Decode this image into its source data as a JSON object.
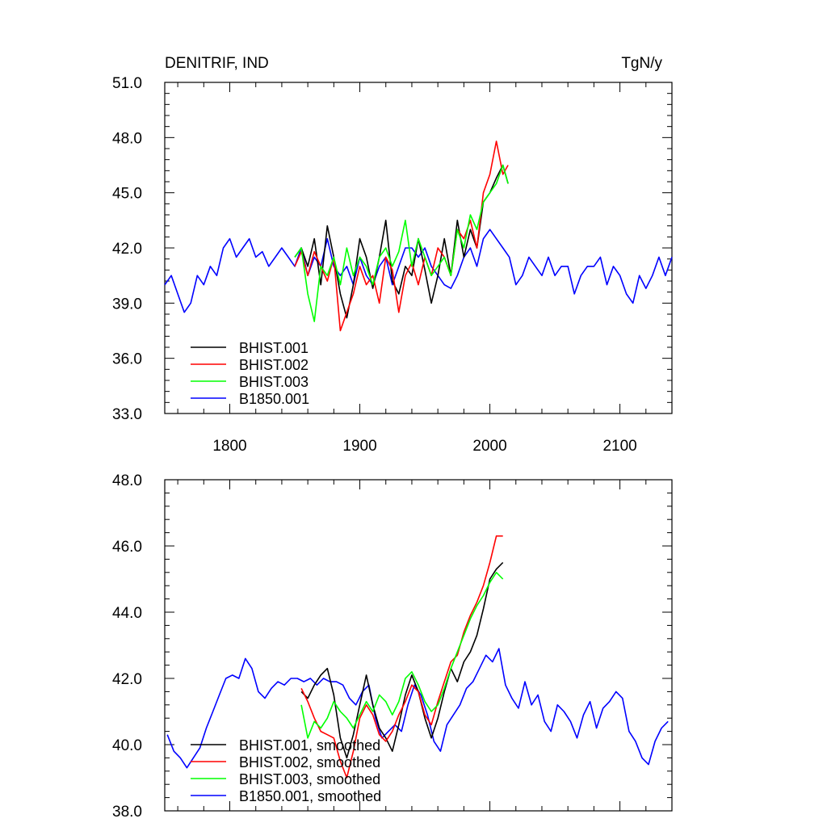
{
  "figure": {
    "title": "DENITRIF, IND",
    "units": "TgN/y"
  },
  "chart_data": [
    {
      "type": "line",
      "panel": "raw",
      "title": "DENITRIF, IND",
      "units": "TgN/y",
      "xlim": [
        1750,
        2140
      ],
      "ylim": [
        33.0,
        51.0
      ],
      "x_ticks": [
        1800,
        1900,
        2000,
        2100
      ],
      "x_tick_labels": [
        "1800",
        "1900",
        "2000",
        "2100"
      ],
      "y_ticks": [
        33.0,
        36.0,
        39.0,
        42.0,
        45.0,
        48.0,
        51.0
      ],
      "y_tick_labels": [
        "33.0",
        "36.0",
        "39.0",
        "42.0",
        "45.0",
        "48.0",
        "51.0"
      ],
      "grid": false,
      "legend_position": "bottom-left",
      "series": [
        {
          "name": "BHIST.001",
          "color": "#000000",
          "x": [
            1850,
            1855,
            1860,
            1865,
            1870,
            1875,
            1880,
            1885,
            1890,
            1895,
            1900,
            1905,
            1910,
            1915,
            1920,
            1925,
            1930,
            1935,
            1940,
            1945,
            1950,
            1955,
            1960,
            1965,
            1970,
            1975,
            1980,
            1985,
            1990,
            1995,
            2000,
            2005,
            2010,
            2014
          ],
          "y": [
            41.5,
            42.0,
            41.0,
            42.5,
            40.0,
            43.2,
            41.5,
            39.5,
            38.2,
            40.0,
            42.5,
            41.5,
            39.8,
            41.5,
            43.5,
            40.2,
            39.5,
            41.0,
            40.5,
            42.5,
            40.8,
            39.0,
            40.5,
            42.5,
            40.5,
            43.5,
            41.5,
            43.0,
            42.0,
            44.5,
            45.0,
            45.8,
            46.5,
            45.5
          ]
        },
        {
          "name": "BHIST.002",
          "color": "#ff0000",
          "x": [
            1850,
            1855,
            1860,
            1865,
            1870,
            1875,
            1880,
            1885,
            1890,
            1895,
            1900,
            1905,
            1910,
            1915,
            1920,
            1925,
            1930,
            1935,
            1940,
            1945,
            1950,
            1955,
            1960,
            1965,
            1970,
            1975,
            1980,
            1985,
            1990,
            1995,
            2000,
            2005,
            2010,
            2014
          ],
          "y": [
            41.0,
            41.8,
            40.5,
            41.8,
            41.0,
            40.2,
            41.5,
            37.5,
            38.5,
            39.5,
            41.0,
            40.0,
            40.5,
            39.0,
            41.5,
            40.8,
            38.5,
            40.5,
            41.2,
            40.0,
            41.5,
            40.5,
            42.0,
            41.5,
            40.5,
            43.0,
            42.5,
            43.5,
            42.0,
            45.0,
            46.0,
            47.8,
            46.0,
            46.5
          ]
        },
        {
          "name": "BHIST.003",
          "color": "#00ff00",
          "x": [
            1850,
            1855,
            1860,
            1865,
            1870,
            1875,
            1880,
            1885,
            1890,
            1895,
            1900,
            1905,
            1910,
            1915,
            1920,
            1925,
            1930,
            1935,
            1940,
            1945,
            1950,
            1955,
            1960,
            1965,
            1970,
            1975,
            1980,
            1985,
            1990,
            1995,
            2000,
            2005,
            2010,
            2014
          ],
          "y": [
            41.5,
            42.0,
            39.5,
            38.0,
            41.0,
            40.5,
            41.5,
            40.0,
            42.0,
            40.5,
            41.5,
            41.0,
            40.0,
            41.5,
            42.0,
            41.0,
            41.8,
            43.5,
            41.0,
            42.5,
            41.5,
            40.5,
            41.0,
            41.5,
            40.5,
            43.0,
            42.0,
            43.8,
            43.0,
            44.5,
            45.0,
            45.5,
            46.5,
            45.5
          ]
        },
        {
          "name": "B1850.001",
          "color": "#0000ff",
          "x": [
            1750,
            1755,
            1760,
            1765,
            1770,
            1775,
            1780,
            1785,
            1790,
            1795,
            1800,
            1805,
            1810,
            1815,
            1820,
            1825,
            1830,
            1835,
            1840,
            1845,
            1850,
            1855,
            1860,
            1865,
            1870,
            1875,
            1880,
            1885,
            1890,
            1895,
            1900,
            1905,
            1910,
            1915,
            1920,
            1925,
            1930,
            1935,
            1940,
            1945,
            1950,
            1955,
            1960,
            1965,
            1970,
            1975,
            1980,
            1985,
            1990,
            1995,
            2000,
            2005,
            2010,
            2015,
            2020,
            2025,
            2030,
            2035,
            2040,
            2045,
            2050,
            2055,
            2060,
            2065,
            2070,
            2075,
            2080,
            2085,
            2090,
            2095,
            2100,
            2105,
            2110,
            2115,
            2120,
            2125,
            2130,
            2135,
            2140
          ],
          "y": [
            40.0,
            40.5,
            39.5,
            38.5,
            39.0,
            40.5,
            40.0,
            41.0,
            40.5,
            42.0,
            42.5,
            41.5,
            42.0,
            42.5,
            41.5,
            41.8,
            41.0,
            41.5,
            42.0,
            41.5,
            41.0,
            42.0,
            40.5,
            41.5,
            41.0,
            42.5,
            41.0,
            40.5,
            41.0,
            40.0,
            41.5,
            40.5,
            40.0,
            41.0,
            41.5,
            40.0,
            41.0,
            42.0,
            42.0,
            41.5,
            42.0,
            41.0,
            40.5,
            40.0,
            39.8,
            40.5,
            41.5,
            42.0,
            41.0,
            42.5,
            43.0,
            42.5,
            42.0,
            41.5,
            40.0,
            40.5,
            41.5,
            41.0,
            40.5,
            41.5,
            40.5,
            41.0,
            41.0,
            39.5,
            40.5,
            41.0,
            41.0,
            41.5,
            40.0,
            41.0,
            40.5,
            39.5,
            39.0,
            40.5,
            39.8,
            40.5,
            41.5,
            40.5,
            41.5
          ]
        }
      ]
    },
    {
      "type": "line",
      "panel": "smoothed",
      "xlim": [
        1750,
        2140
      ],
      "ylim": [
        38.0,
        48.0
      ],
      "x_ticks": [
        1800,
        1900,
        2000,
        2100
      ],
      "x_tick_labels": [],
      "y_ticks": [
        38.0,
        40.0,
        42.0,
        44.0,
        46.0,
        48.0
      ],
      "y_tick_labels": [
        "38.0",
        "40.0",
        "42.0",
        "44.0",
        "46.0",
        "48.0"
      ],
      "grid": false,
      "legend_position": "bottom-left",
      "series": [
        {
          "name": "BHIST.001, smoothed",
          "color": "#000000",
          "x": [
            1855,
            1860,
            1865,
            1870,
            1875,
            1880,
            1885,
            1890,
            1895,
            1900,
            1905,
            1910,
            1915,
            1920,
            1925,
            1930,
            1935,
            1940,
            1945,
            1950,
            1955,
            1960,
            1965,
            1970,
            1975,
            1980,
            1985,
            1990,
            1995,
            2000,
            2005,
            2010
          ],
          "y": [
            41.6,
            41.4,
            41.8,
            42.1,
            42.3,
            41.5,
            40.2,
            39.6,
            40.3,
            41.2,
            42.1,
            41.2,
            40.5,
            40.2,
            39.8,
            40.6,
            41.5,
            42.1,
            41.6,
            40.8,
            40.2,
            40.8,
            41.6,
            42.3,
            41.9,
            42.5,
            42.8,
            43.3,
            44.1,
            45.0,
            45.3,
            45.5
          ]
        },
        {
          "name": "BHIST.002, smoothed",
          "color": "#ff0000",
          "x": [
            1855,
            1860,
            1865,
            1870,
            1875,
            1880,
            1885,
            1890,
            1895,
            1900,
            1905,
            1910,
            1915,
            1920,
            1925,
            1930,
            1935,
            1940,
            1945,
            1950,
            1955,
            1960,
            1965,
            1970,
            1975,
            1980,
            1985,
            1990,
            1995,
            2000,
            2005,
            2010
          ],
          "y": [
            41.7,
            41.3,
            40.8,
            40.4,
            40.3,
            40.2,
            39.5,
            39.0,
            39.8,
            40.8,
            41.2,
            40.9,
            40.3,
            40.1,
            40.4,
            40.9,
            41.3,
            41.8,
            41.6,
            40.9,
            40.6,
            41.3,
            41.9,
            42.5,
            42.7,
            43.4,
            43.9,
            44.3,
            44.8,
            45.5,
            46.3,
            46.3
          ]
        },
        {
          "name": "BHIST.003, smoothed",
          "color": "#00ff00",
          "x": [
            1855,
            1860,
            1865,
            1870,
            1875,
            1880,
            1885,
            1890,
            1895,
            1900,
            1905,
            1910,
            1915,
            1920,
            1925,
            1930,
            1935,
            1940,
            1945,
            1950,
            1955,
            1960,
            1965,
            1970,
            1975,
            1980,
            1985,
            1990,
            1995,
            2000,
            2005,
            2010
          ],
          "y": [
            41.2,
            40.2,
            40.7,
            40.5,
            40.8,
            41.3,
            41.0,
            40.8,
            40.5,
            40.9,
            41.3,
            41.0,
            41.5,
            41.3,
            40.9,
            41.3,
            42.0,
            42.2,
            41.8,
            41.3,
            41.0,
            41.2,
            41.7,
            42.3,
            42.8,
            43.3,
            43.8,
            44.2,
            44.5,
            44.9,
            45.2,
            45.0
          ]
        },
        {
          "name": "B1850.001, smoothed",
          "color": "#0000ff",
          "x": [
            1752,
            1757,
            1762,
            1767,
            1772,
            1777,
            1782,
            1787,
            1792,
            1797,
            1802,
            1807,
            1812,
            1817,
            1822,
            1827,
            1832,
            1837,
            1842,
            1847,
            1852,
            1857,
            1862,
            1867,
            1872,
            1877,
            1882,
            1887,
            1892,
            1897,
            1902,
            1907,
            1912,
            1917,
            1922,
            1927,
            1932,
            1937,
            1942,
            1947,
            1952,
            1957,
            1962,
            1967,
            1972,
            1977,
            1982,
            1987,
            1992,
            1997,
            2002,
            2007,
            2012,
            2017,
            2022,
            2027,
            2032,
            2037,
            2042,
            2047,
            2052,
            2057,
            2062,
            2067,
            2072,
            2077,
            2082,
            2087,
            2092,
            2097,
            2102,
            2107,
            2112,
            2117,
            2122,
            2127,
            2132,
            2137
          ],
          "y": [
            40.3,
            39.8,
            39.6,
            39.3,
            39.6,
            39.9,
            40.5,
            41.0,
            41.5,
            42.0,
            42.1,
            42.0,
            42.6,
            42.3,
            41.6,
            41.4,
            41.7,
            41.9,
            41.8,
            42.0,
            42.0,
            41.9,
            42.0,
            41.8,
            42.0,
            41.9,
            41.9,
            41.8,
            41.4,
            41.2,
            41.6,
            41.8,
            40.8,
            40.2,
            40.4,
            40.6,
            40.4,
            41.2,
            41.8,
            41.5,
            40.9,
            40.1,
            39.8,
            40.6,
            40.9,
            41.2,
            41.7,
            41.9,
            42.3,
            42.7,
            42.5,
            42.9,
            41.8,
            41.4,
            41.1,
            41.9,
            41.2,
            41.5,
            40.7,
            40.4,
            41.2,
            41.0,
            40.7,
            40.2,
            40.9,
            41.3,
            40.5,
            41.1,
            41.3,
            41.6,
            41.4,
            40.4,
            40.1,
            39.6,
            39.4,
            40.1,
            40.5,
            40.7
          ]
        }
      ]
    }
  ]
}
